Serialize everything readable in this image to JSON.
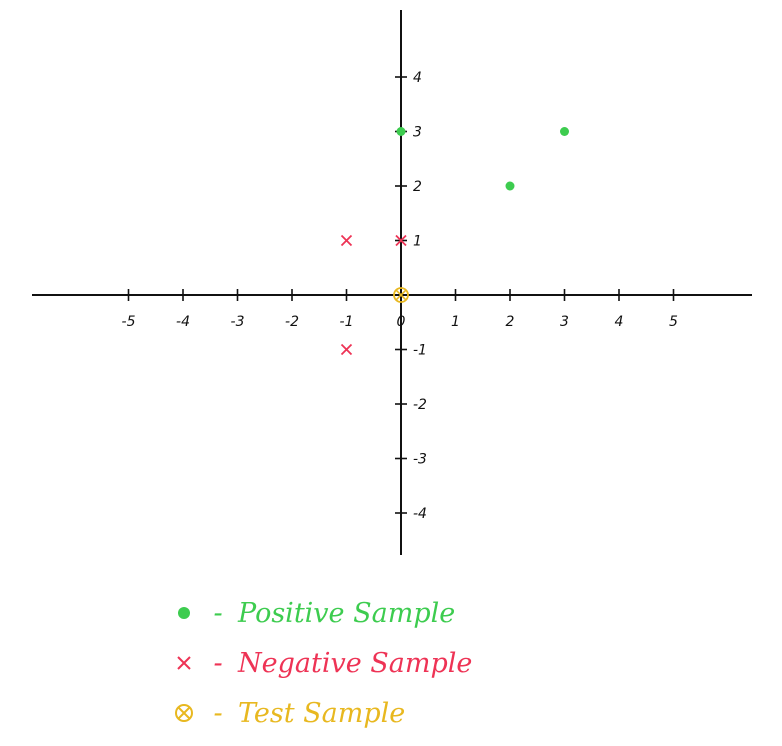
{
  "chart_data": {
    "type": "scatter",
    "xlim": [
      -5,
      5
    ],
    "ylim": [
      -4,
      4
    ],
    "x_ticks": [
      "-5",
      "-4",
      "-3",
      "-2",
      "-1",
      "0",
      "1",
      "2",
      "3",
      "4",
      "5"
    ],
    "y_ticks": [
      "4",
      "3",
      "2",
      "1",
      "-1",
      "-2",
      "-3",
      "-4"
    ],
    "grid": false,
    "series": [
      {
        "name": "Positive Sample",
        "marker": "dot",
        "color": "#3dcc4f",
        "points": [
          [
            0,
            3
          ],
          [
            2,
            2
          ],
          [
            3,
            3
          ]
        ]
      },
      {
        "name": "Negative Sample",
        "marker": "x",
        "color": "#ee3355",
        "points": [
          [
            -1,
            1
          ],
          [
            0,
            1
          ],
          [
            -1,
            -1
          ]
        ]
      },
      {
        "name": "Test Sample",
        "marker": "circle-x",
        "color": "#e8b820",
        "points": [
          [
            0,
            0
          ]
        ]
      }
    ]
  },
  "legend": {
    "dash": "-",
    "items": [
      {
        "label": "Positive Sample",
        "color": "#3dcc4f",
        "icon": "dot-icon"
      },
      {
        "label": "Negative Sample",
        "color": "#ee3355",
        "icon": "x-icon"
      },
      {
        "label": "Test Sample",
        "color": "#e8b820",
        "icon": "circle-x-icon"
      }
    ]
  }
}
